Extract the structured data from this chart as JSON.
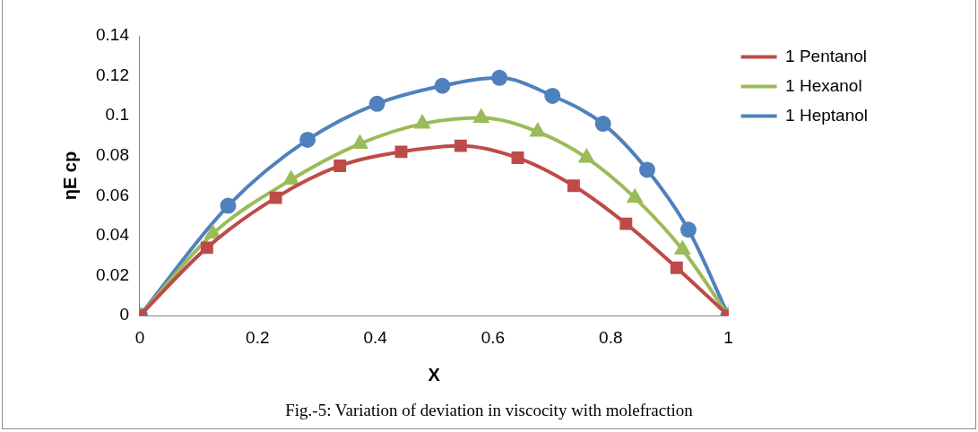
{
  "chart_data": {
    "type": "line",
    "xlabel": "X",
    "ylabel": "ηE cp",
    "xlim": [
      0,
      1
    ],
    "xticks": [
      0,
      0.2,
      0.4,
      0.6,
      0.8,
      1
    ],
    "ylim": [
      0,
      0.14
    ],
    "yticks": [
      0,
      0.02,
      0.04,
      0.06,
      0.08,
      0.1,
      0.12,
      0.14
    ],
    "grid": false,
    "legend": "right",
    "annotations": [
      "Fig.-5: Variation of deviation in viscocity with molefraction"
    ],
    "series": [
      {
        "name": "1 Pentanol",
        "color": "#be4b48",
        "marker": "square",
        "x": [
          0,
          0.114,
          0.231,
          0.34,
          0.444,
          0.545,
          0.642,
          0.737,
          0.826,
          0.912,
          1
        ],
        "values": [
          0,
          0.034,
          0.059,
          0.075,
          0.082,
          0.085,
          0.079,
          0.065,
          0.046,
          0.024,
          0
        ]
      },
      {
        "name": "1 Hexanol",
        "color": "#9bbb59",
        "marker": "triangle",
        "x": [
          0,
          0.124,
          0.257,
          0.374,
          0.48,
          0.58,
          0.676,
          0.759,
          0.841,
          0.922,
          1
        ],
        "values": [
          0,
          0.041,
          0.068,
          0.086,
          0.096,
          0.099,
          0.092,
          0.079,
          0.059,
          0.033,
          0
        ]
      },
      {
        "name": "1 Heptanol",
        "color": "#4f81bd",
        "marker": "circle",
        "x": [
          0,
          0.15,
          0.285,
          0.403,
          0.514,
          0.611,
          0.701,
          0.787,
          0.862,
          0.932,
          1
        ],
        "values": [
          0,
          0.055,
          0.088,
          0.106,
          0.115,
          0.119,
          0.11,
          0.096,
          0.073,
          0.043,
          0
        ]
      }
    ]
  }
}
